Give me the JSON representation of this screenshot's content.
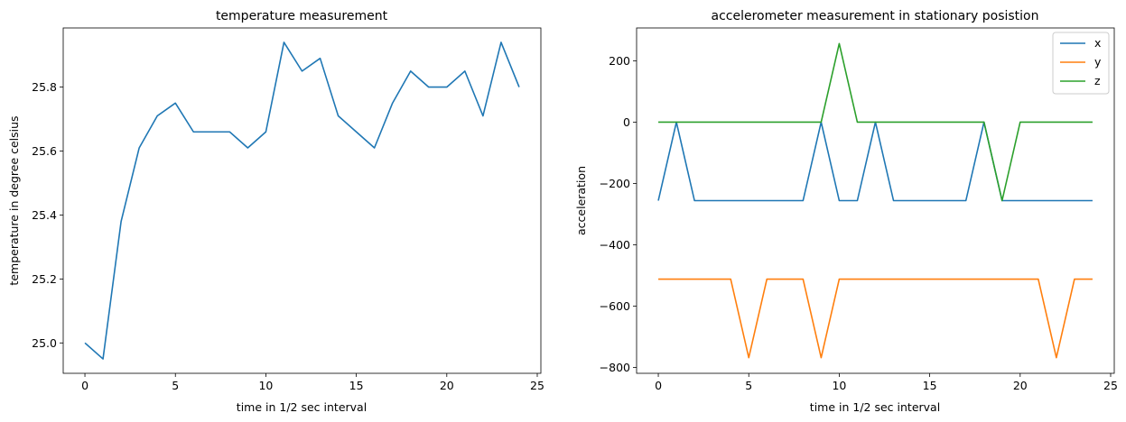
{
  "chart_data": [
    {
      "type": "line",
      "title": "temperature measurement",
      "xlabel": "time in 1/2 sec interval",
      "ylabel": "temperature in degree celsius",
      "xlim": [
        -1.2,
        25.2
      ],
      "ylim": [
        24.905,
        25.985
      ],
      "xticks": [
        0,
        5,
        10,
        15,
        20,
        25
      ],
      "xtick_labels": [
        "0",
        "5",
        "10",
        "15",
        "20",
        "25"
      ],
      "yticks": [
        25.0,
        25.2,
        25.4,
        25.6,
        25.8
      ],
      "ytick_labels": [
        "25.0",
        "25.2",
        "25.4",
        "25.6",
        "25.8"
      ],
      "grid": false,
      "x": [
        0,
        1,
        2,
        3,
        4,
        5,
        6,
        7,
        8,
        9,
        10,
        11,
        12,
        13,
        14,
        15,
        16,
        17,
        18,
        19,
        20,
        21,
        22,
        23,
        24
      ],
      "series": [
        {
          "color": "#1f77b4",
          "values": [
            25.0,
            24.95,
            25.38,
            25.61,
            25.71,
            25.75,
            25.66,
            25.66,
            25.66,
            25.61,
            25.66,
            25.94,
            25.85,
            25.89,
            25.71,
            25.66,
            25.61,
            25.75,
            25.85,
            25.8,
            25.8,
            25.85,
            25.71,
            25.94,
            25.8
          ]
        }
      ]
    },
    {
      "type": "line",
      "title": "accelerometer measurement in stationary posistion",
      "xlabel": "time in 1/2 sec interval",
      "ylabel": "acceleration",
      "xlim": [
        -1.2,
        25.2
      ],
      "ylim": [
        -819,
        307
      ],
      "xticks": [
        0,
        5,
        10,
        15,
        20,
        25
      ],
      "xtick_labels": [
        "0",
        "5",
        "10",
        "15",
        "20",
        "25"
      ],
      "yticks": [
        -800,
        -600,
        -400,
        -200,
        0,
        200
      ],
      "ytick_labels": [
        "−800",
        "−600",
        "−400",
        "−200",
        "0",
        "200"
      ],
      "grid": false,
      "legend_position": "top-right",
      "x": [
        0,
        1,
        2,
        3,
        4,
        5,
        6,
        7,
        8,
        9,
        10,
        11,
        12,
        13,
        14,
        15,
        16,
        17,
        18,
        19,
        20,
        21,
        22,
        23,
        24
      ],
      "series": [
        {
          "name": "x",
          "color": "#1f77b4",
          "values": [
            -256,
            0,
            -256,
            -256,
            -256,
            -256,
            -256,
            -256,
            -256,
            0,
            -256,
            -256,
            0,
            -256,
            -256,
            -256,
            -256,
            -256,
            0,
            -256,
            -256,
            -256,
            -256,
            -256,
            -256
          ]
        },
        {
          "name": "y",
          "color": "#ff7f0e",
          "values": [
            -512,
            -512,
            -512,
            -512,
            -512,
            -768,
            -512,
            -512,
            -512,
            -768,
            -512,
            -512,
            -512,
            -512,
            -512,
            -512,
            -512,
            -512,
            -512,
            -512,
            -512,
            -512,
            -768,
            -512,
            -512
          ]
        },
        {
          "name": "z",
          "color": "#2ca02c",
          "values": [
            0,
            0,
            0,
            0,
            0,
            0,
            0,
            0,
            0,
            0,
            256,
            0,
            0,
            0,
            0,
            0,
            0,
            0,
            0,
            -256,
            0,
            0,
            0,
            0,
            0
          ]
        }
      ]
    }
  ]
}
